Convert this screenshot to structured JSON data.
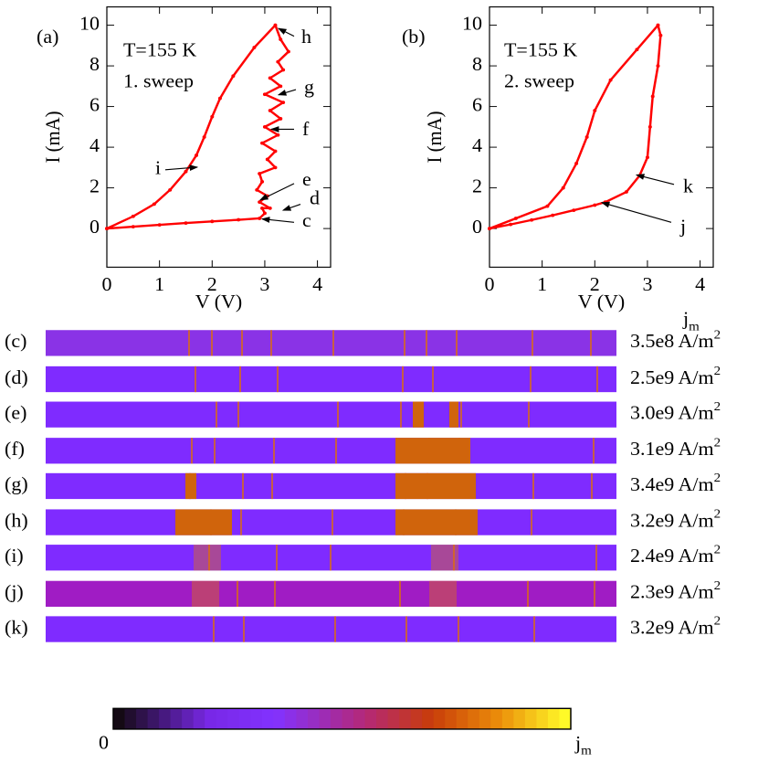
{
  "chart_data": [
    {
      "type": "line",
      "panel_label": "(a)",
      "annotations": [
        "T=155 K",
        "1. sweep"
      ],
      "xlabel": "V (V)",
      "ylabel": "I (mA)",
      "xlim": [
        0,
        4.25
      ],
      "ylim": [
        -1.9,
        10.9
      ],
      "xticks": [
        0,
        1,
        2,
        3,
        4
      ],
      "yticks": [
        0,
        2,
        4,
        6,
        8,
        10
      ],
      "series": [
        {
          "color": "#ff0000",
          "x": [
            0,
            0.5,
            1.0,
            1.5,
            2.0,
            2.5,
            2.9,
            3.0,
            2.95,
            3.1,
            2.9,
            3.05,
            2.85,
            2.95,
            2.9,
            3.2,
            3.05,
            3.2,
            2.95,
            3.25,
            3.0,
            3.3,
            3.1,
            3.35,
            3.0,
            3.3,
            3.1,
            3.35,
            3.25,
            3.45,
            3.3,
            3.2,
            2.8,
            2.4,
            2.15,
            2.0,
            1.85,
            1.7,
            1.5,
            1.2,
            0.9,
            0.5,
            0
          ],
          "values": [
            0,
            0.09,
            0.18,
            0.27,
            0.35,
            0.43,
            0.5,
            0.75,
            1.0,
            1.0,
            1.3,
            1.6,
            1.9,
            2.3,
            2.7,
            3.0,
            3.4,
            3.8,
            4.2,
            4.6,
            5.0,
            5.4,
            5.8,
            6.2,
            6.6,
            7.0,
            7.4,
            7.8,
            8.2,
            8.7,
            9.3,
            10,
            8.9,
            7.5,
            6.4,
            5.5,
            4.5,
            3.6,
            2.8,
            1.9,
            1.2,
            0.6,
            0
          ]
        }
      ],
      "arrow_labels": [
        "h",
        "g",
        "f",
        "e",
        "d",
        "c",
        "i"
      ]
    },
    {
      "type": "line",
      "panel_label": "(b)",
      "annotations": [
        "T=155 K",
        "2. sweep"
      ],
      "xlabel": "V (V)",
      "ylabel": "I (mA)",
      "xlim": [
        0,
        4.25
      ],
      "ylim": [
        -1.9,
        10.9
      ],
      "xticks": [
        0,
        1,
        2,
        3,
        4
      ],
      "yticks": [
        0,
        2,
        4,
        6,
        8,
        10
      ],
      "series": [
        {
          "color": "#ff0000",
          "x": [
            0,
            0.4,
            0.8,
            1.2,
            1.6,
            2.0,
            2.2,
            2.6,
            2.85,
            3.0,
            3.05,
            3.1,
            3.2,
            3.25,
            3.2,
            2.8,
            2.3,
            2.0,
            1.85,
            1.65,
            1.4,
            1.1,
            0.5,
            0
          ],
          "values": [
            0,
            0.2,
            0.42,
            0.65,
            0.9,
            1.15,
            1.3,
            1.8,
            2.6,
            3.5,
            5.0,
            6.5,
            8.0,
            9.5,
            10,
            8.8,
            7.3,
            5.8,
            4.5,
            3.2,
            2.0,
            1.1,
            0.5,
            0
          ]
        }
      ],
      "arrow_labels": [
        "k",
        "j"
      ]
    }
  ],
  "strips": {
    "heading": "j",
    "heading_sub": "m",
    "rows": [
      {
        "label": "(c)",
        "jm": "3.5e8 A/m",
        "exp": "2"
      },
      {
        "label": "(d)",
        "jm": "2.5e9 A/m",
        "exp": "2"
      },
      {
        "label": "(e)",
        "jm": "3.0e9 A/m",
        "exp": "2"
      },
      {
        "label": "(f)",
        "jm": "3.1e9 A/m",
        "exp": "2"
      },
      {
        "label": "(g)",
        "jm": "3.4e9 A/m",
        "exp": "2"
      },
      {
        "label": "(h)",
        "jm": "3.2e9 A/m",
        "exp": "2"
      },
      {
        "label": "(i)",
        "jm": "2.4e9 A/m",
        "exp": "2"
      },
      {
        "label": "(j)",
        "jm": "2.3e9 A/m",
        "exp": "2"
      },
      {
        "label": "(k)",
        "jm": "3.2e9 A/m",
        "exp": "2"
      }
    ]
  },
  "colorbar": {
    "min_label": "0",
    "max_label": "j",
    "max_sub": "m"
  }
}
